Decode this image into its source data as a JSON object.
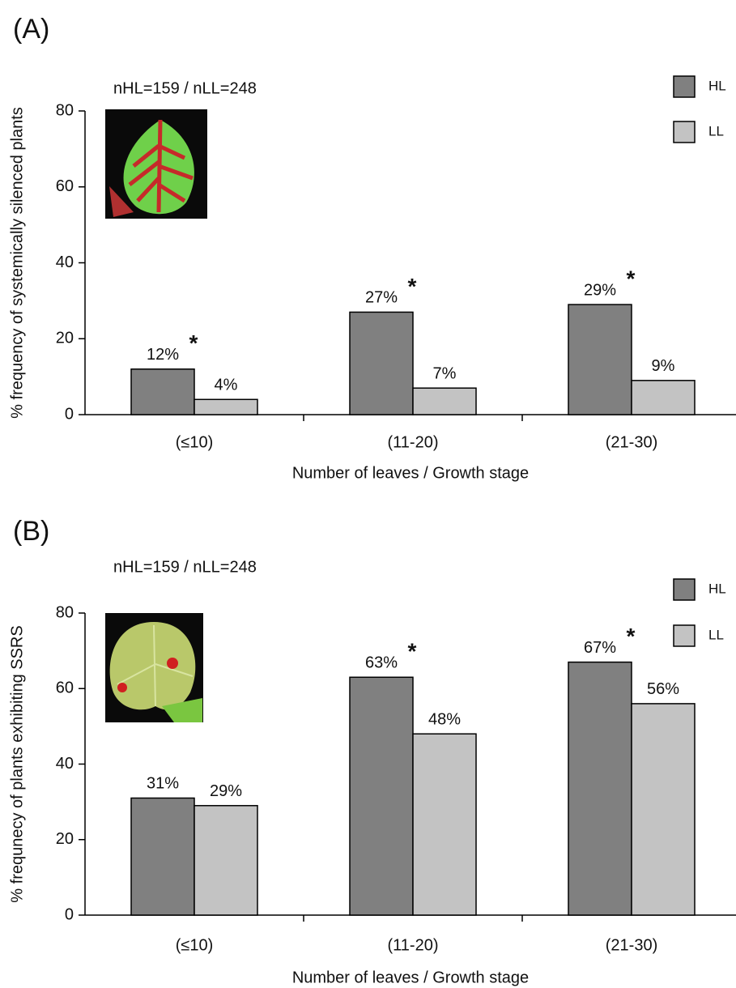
{
  "chart_data": [
    {
      "type": "bar",
      "title": "(A)",
      "annotation": "nHL=159 / nLL=248",
      "y_label": "% frequency of systemically silenced plants",
      "x_label": "Number of leaves / Growth stage",
      "categories": [
        "(≤10)",
        "(11-20)",
        "(21-30)"
      ],
      "series": [
        {
          "name": "HL",
          "color": "#808080",
          "values": [
            12,
            27,
            29
          ],
          "value_labels": [
            "12%",
            "27%",
            "29%"
          ],
          "significance": [
            "*",
            "*",
            "*"
          ]
        },
        {
          "name": "LL",
          "color": "#c3c3c3",
          "values": [
            4,
            7,
            9
          ],
          "value_labels": [
            "4%",
            "7%",
            "9%"
          ]
        }
      ],
      "ylim": [
        0,
        80
      ],
      "yticks": [
        0,
        20,
        40,
        60,
        80
      ],
      "legend": "top-right"
    },
    {
      "type": "bar",
      "title": "(B)",
      "annotation": "nHL=159 / nLL=248",
      "y_label": "% frequnecy of plants exhibiting SSRS",
      "x_label": "Number of leaves / Growth stage",
      "categories": [
        "(≤10)",
        "(11-20)",
        "(21-30)"
      ],
      "series": [
        {
          "name": "HL",
          "color": "#808080",
          "values": [
            31,
            63,
            67
          ],
          "value_labels": [
            "31%",
            "63%",
            "67%"
          ],
          "significance": [
            null,
            "*",
            "*"
          ]
        },
        {
          "name": "LL",
          "color": "#c3c3c3",
          "values": [
            29,
            48,
            56
          ],
          "value_labels": [
            "29%",
            "48%",
            "56%"
          ]
        }
      ],
      "ylim": [
        0,
        80
      ],
      "yticks": [
        0,
        20,
        40,
        60,
        80
      ],
      "legend": "top-right"
    }
  ]
}
